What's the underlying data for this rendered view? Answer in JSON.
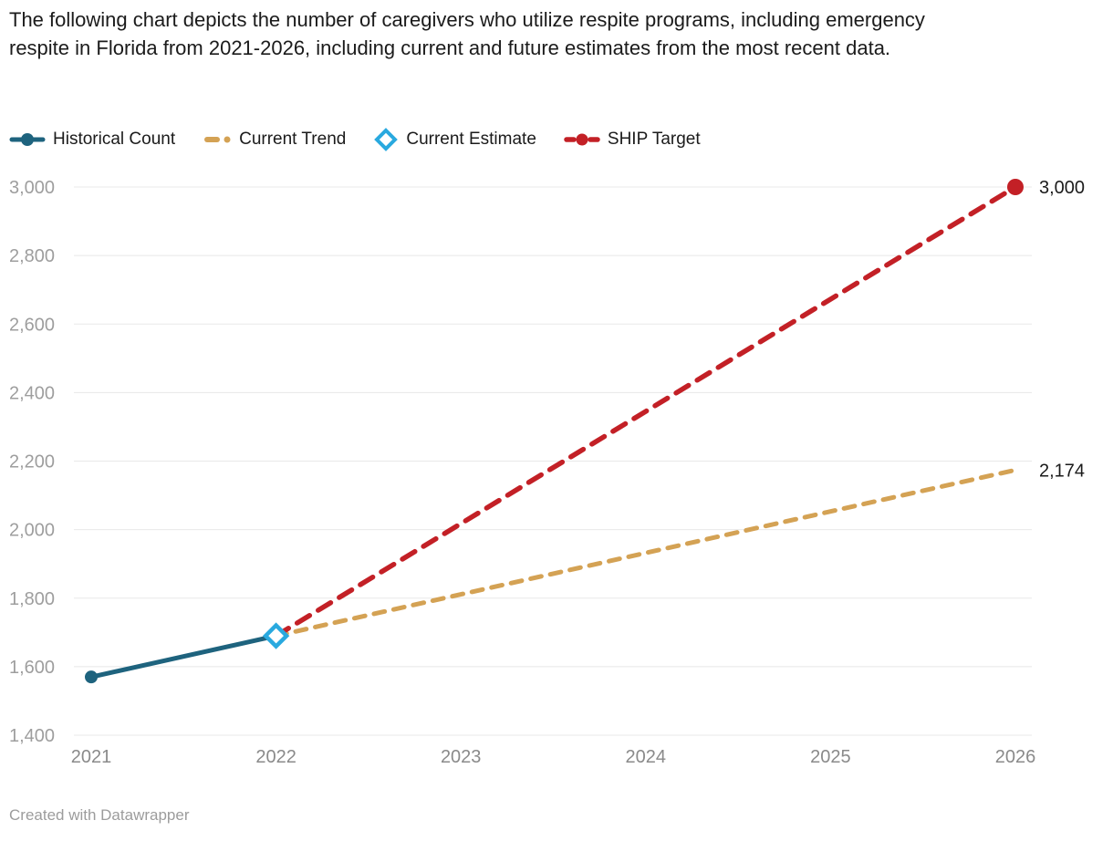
{
  "header": {
    "title": "The following chart depicts the number of caregivers who utilize respite programs, including emergency respite in Florida from 2021-2026, including current and future estimates from the most recent data."
  },
  "legend": {
    "items": [
      {
        "label": "Historical Count",
        "color": "#1e637e",
        "marker": "line-dot"
      },
      {
        "label": "Current Trend",
        "color": "#d4a254",
        "marker": "dash-dot"
      },
      {
        "label": "Current Estimate",
        "color": "#29a9df",
        "marker": "diamond"
      },
      {
        "label": "SHIP Target",
        "color": "#c32026",
        "marker": "dash-circle-dash"
      }
    ]
  },
  "footer": {
    "credit": "Created with Datawrapper"
  },
  "colors": {
    "grid": "#e8e8e8",
    "y_tick_text": "#9e9e9e",
    "x_tick_text": "#8a8a8a",
    "end_label_text": "#1b1b1b"
  },
  "chart_data": {
    "type": "line",
    "title": "Number of caregivers who utilize respite programs, including emergency respite, Florida 2021-2026",
    "x_labels": [
      2021,
      2022,
      2023,
      2024,
      2025,
      2026
    ],
    "ylim": [
      1400,
      3000
    ],
    "yticks": [
      1400,
      1600,
      1800,
      2000,
      2200,
      2400,
      2600,
      2800,
      3000
    ],
    "grid": true,
    "legend_position": "top",
    "series": [
      {
        "name": "Current Trend",
        "color": "#d4a254",
        "dash": "12 10",
        "width": 5,
        "points": [
          [
            2022,
            1690
          ],
          [
            2026,
            2174
          ]
        ],
        "end_label": "2,174",
        "markers": []
      },
      {
        "name": "SHIP Target",
        "color": "#c32026",
        "dash": "16 11",
        "width": 5.5,
        "points": [
          [
            2022,
            1690
          ],
          [
            2026,
            3000
          ]
        ],
        "end_label": "3,000",
        "markers": [
          {
            "type": "circle",
            "at": "last",
            "r": 9
          }
        ]
      },
      {
        "name": "Historical Count",
        "color": "#1e637e",
        "dash": "solid",
        "width": 5,
        "points": [
          [
            2021,
            1570
          ],
          [
            2022,
            1690
          ]
        ],
        "markers": [
          {
            "type": "circle",
            "at": "first",
            "r": 7
          }
        ]
      },
      {
        "name": "Current Estimate",
        "color": "#29a9df",
        "dash": "none",
        "width": 4.5,
        "points": [
          [
            2022,
            1690
          ]
        ],
        "markers": [
          {
            "type": "diamond",
            "at": "first",
            "r": 11.5
          }
        ]
      }
    ]
  }
}
